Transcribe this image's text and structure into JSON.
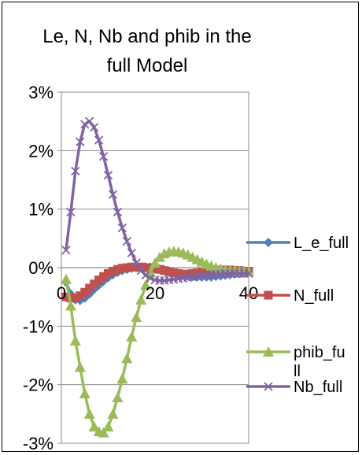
{
  "chart_data": {
    "type": "line",
    "title_lines": [
      "Le, N, Nb and phib in the",
      "full Model"
    ],
    "xlabel": "",
    "ylabel": "",
    "xlim": [
      0,
      40
    ],
    "ylim": [
      -0.03,
      0.03
    ],
    "x_ticks": [
      {
        "value": 0,
        "label": "0"
      },
      {
        "value": 20,
        "label": "20"
      },
      {
        "value": 40,
        "label": "40"
      }
    ],
    "y_ticks": [
      {
        "value": 0.03,
        "label": "3%"
      },
      {
        "value": 0.02,
        "label": "2%"
      },
      {
        "value": 0.01,
        "label": "1%"
      },
      {
        "value": 0.0,
        "label": "0%"
      },
      {
        "value": -0.01,
        "label": "-1%"
      },
      {
        "value": -0.02,
        "label": "-2%"
      },
      {
        "value": -0.03,
        "label": "-3%"
      }
    ],
    "grid": "horizontal",
    "legend_position": "right",
    "x": [
      1,
      2,
      3,
      4,
      5,
      6,
      7,
      8,
      9,
      10,
      11,
      12,
      13,
      14,
      15,
      16,
      17,
      18,
      19,
      20,
      21,
      22,
      23,
      24,
      25,
      26,
      27,
      28,
      29,
      30,
      31,
      32,
      33,
      34,
      35,
      36,
      37,
      38,
      39,
      40
    ],
    "series": [
      {
        "name": "L_e_full",
        "color": "#4f81bd",
        "marker": "diamond",
        "legend_lines": [
          "L_e_full"
        ],
        "values": [
          -0.0025,
          -0.0045,
          -0.0055,
          -0.0056,
          -0.0052,
          -0.0045,
          -0.0037,
          -0.003,
          -0.0023,
          -0.0017,
          -0.0012,
          -0.0008,
          -0.0005,
          -0.0003,
          -0.0001,
          0.0,
          0.0001,
          0.0001,
          0.0001,
          0.0,
          -0.0002,
          -0.0004,
          -0.0006,
          -0.0008,
          -0.001,
          -0.0012,
          -0.0014,
          -0.0015,
          -0.0016,
          -0.0016,
          -0.0016,
          -0.0016,
          -0.0015,
          -0.0014,
          -0.0013,
          -0.0012,
          -0.0011,
          -0.001,
          -0.0009,
          -0.0008
        ]
      },
      {
        "name": "N_full",
        "color": "#c0504d",
        "marker": "square",
        "legend_lines": [
          "N_full"
        ],
        "values": [
          -0.005,
          -0.0052,
          -0.0052,
          -0.0048,
          -0.0042,
          -0.0035,
          -0.0028,
          -0.0021,
          -0.0015,
          -0.001,
          -0.0006,
          -0.0003,
          -0.0001,
          0.0,
          0.0001,
          0.0001,
          0.0001,
          0.0,
          -0.0001,
          -0.0002,
          -0.0003,
          -0.0005,
          -0.0007,
          -0.0009,
          -0.001,
          -0.0011,
          -0.0011,
          -0.001,
          -0.0009,
          -0.0008,
          -0.0006,
          -0.0005,
          -0.0004,
          -0.0004,
          -0.0004,
          -0.0004,
          -0.0005,
          -0.0005,
          -0.0006,
          -0.0006
        ]
      },
      {
        "name": "phib_full",
        "color": "#9bbb59",
        "marker": "triangle",
        "legend_lines": [
          "phib_fu",
          "ll"
        ],
        "values": [
          -0.002,
          -0.0065,
          -0.0125,
          -0.017,
          -0.0215,
          -0.025,
          -0.0272,
          -0.028,
          -0.0282,
          -0.0272,
          -0.025,
          -0.0222,
          -0.019,
          -0.0155,
          -0.0118,
          -0.0085,
          -0.0055,
          -0.003,
          -0.0008,
          0.0008,
          0.0018,
          0.0024,
          0.0027,
          0.0028,
          0.0027,
          0.0025,
          0.0022,
          0.0018,
          0.0014,
          0.001,
          0.0006,
          0.0003,
          0.0,
          -0.0002,
          -0.0004,
          -0.0005,
          -0.0005,
          -0.0006,
          -0.0006,
          -0.0006
        ]
      },
      {
        "name": "Nb_full",
        "color": "#8064a2",
        "marker": "x",
        "legend_lines": [
          "Nb_full"
        ],
        "values": [
          0.003,
          0.0095,
          0.0165,
          0.0215,
          0.0245,
          0.025,
          0.024,
          0.0218,
          0.019,
          0.0158,
          0.0125,
          0.0095,
          0.0068,
          0.0045,
          0.0025,
          0.0008,
          -0.0005,
          -0.0013,
          -0.0018,
          -0.0021,
          -0.0022,
          -0.0022,
          -0.0021,
          -0.002,
          -0.0019,
          -0.0018,
          -0.0017,
          -0.0016,
          -0.0015,
          -0.0014,
          -0.0013,
          -0.0012,
          -0.0011,
          -0.0011,
          -0.001,
          -0.001,
          -0.001,
          -0.001,
          -0.001,
          -0.001
        ]
      }
    ]
  }
}
